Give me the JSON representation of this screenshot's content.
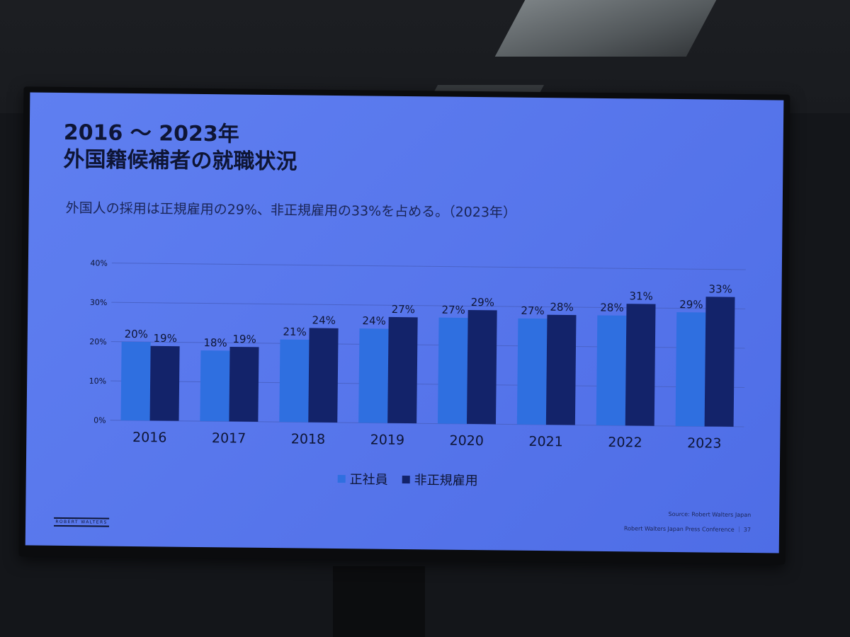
{
  "slide": {
    "title_line1": "2016 ～ 2023年",
    "title_line2": "外国籍候補者の就職状況",
    "subtitle": "外国人の採用は正規雇用の29%、非正規雇用の33%を占める。（2023年）",
    "source": "Source: Robert Walters Japan",
    "footer": "Robert Walters Japan Press Conference ｜ 37",
    "logo_text": "ROBERT WALTERS"
  },
  "colors": {
    "series1": "#2f6fe0",
    "series2": "#13236a",
    "grid": "#4a63c8",
    "text": "#0e1535"
  },
  "chart_data": {
    "type": "bar",
    "categories": [
      "2016",
      "2017",
      "2018",
      "2019",
      "2020",
      "2021",
      "2022",
      "2023"
    ],
    "series": [
      {
        "name": "正社員",
        "values": [
          20,
          18,
          21,
          24,
          27,
          27,
          28,
          29
        ]
      },
      {
        "name": "非正規雇用",
        "values": [
          19,
          19,
          24,
          27,
          29,
          28,
          31,
          33
        ]
      }
    ],
    "value_labels": {
      "series1": [
        "20%",
        "18%",
        "21%",
        "24%",
        "27%",
        "27%",
        "28%",
        "29%"
      ],
      "series2": [
        "19%",
        "19%",
        "24%",
        "27%",
        "29%",
        "28%",
        "31%",
        "33%"
      ]
    },
    "yticks": [
      0,
      10,
      20,
      30,
      40
    ],
    "ytick_labels": [
      "0%",
      "10%",
      "20%",
      "30%",
      "40%"
    ],
    "ylim": [
      0,
      40
    ],
    "grid": true,
    "legend_position": "bottom-center"
  }
}
